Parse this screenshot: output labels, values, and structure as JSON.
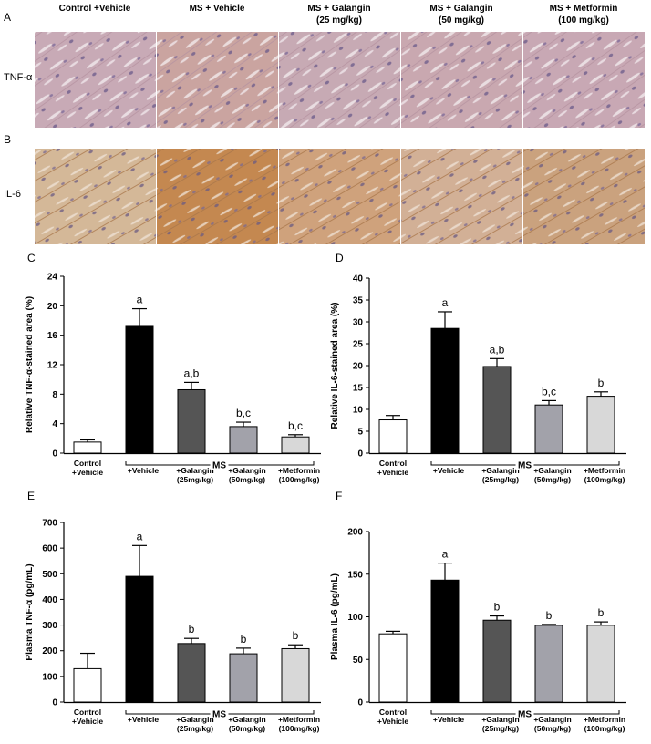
{
  "figure": {
    "micrographs": {
      "columns": [
        [
          "Control +Vehicle"
        ],
        [
          "MS + Vehicle"
        ],
        [
          "MS + Galangin",
          "(25 mg/kg)"
        ],
        [
          "MS + Galangin",
          "(50 mg/kg)"
        ],
        [
          "MS + Metformin",
          "(100 mg/kg)"
        ]
      ],
      "rows": [
        {
          "panel": "A",
          "label": "TNF-α"
        },
        {
          "panel": "B",
          "label": "IL-6"
        }
      ]
    },
    "panels": [
      "C",
      "D",
      "E",
      "F"
    ]
  },
  "chart_data": [
    {
      "type": "bar",
      "ylabel": "Relative TNF-α-stained area (%)",
      "categories": [
        [
          "Control",
          "+Vehicle"
        ],
        [
          "+Vehicle"
        ],
        [
          "+Galangin",
          "(25mg/kg)"
        ],
        [
          "+Galangin",
          "(50mg/kg)"
        ],
        [
          "+Metformin",
          "(100mg/kg)"
        ]
      ],
      "group_label": "MS",
      "values": [
        1.5,
        17.2,
        8.6,
        3.6,
        2.2
      ],
      "errors": [
        0.3,
        2.4,
        1.0,
        0.6,
        0.3
      ],
      "annotations": [
        null,
        "a",
        "a,b",
        "b,c",
        "b,c"
      ],
      "colors": [
        "#ffffff",
        "#000000",
        "#555555",
        "#a2a2aa",
        "#d8d8d8"
      ],
      "ylim": [
        0,
        24
      ],
      "yticks": [
        0,
        4,
        8,
        12,
        16,
        20,
        24
      ]
    },
    {
      "type": "bar",
      "ylabel": "Relative IL-6-stained area (%)",
      "categories": [
        [
          "Control",
          "+Vehicle"
        ],
        [
          "+Vehicle"
        ],
        [
          "+Galangin",
          "(25mg/kg)"
        ],
        [
          "+Galangin",
          "(50mg/kg)"
        ],
        [
          "+Metformin",
          "(100mg/kg)"
        ]
      ],
      "group_label": "MS",
      "values": [
        7.6,
        28.5,
        19.8,
        11.0,
        13.0
      ],
      "errors": [
        1.0,
        3.8,
        1.8,
        1.0,
        1.0
      ],
      "annotations": [
        null,
        "a",
        "a,b",
        "b,c",
        "b"
      ],
      "colors": [
        "#ffffff",
        "#000000",
        "#555555",
        "#a2a2aa",
        "#d8d8d8"
      ],
      "ylim": [
        0,
        40
      ],
      "yticks": [
        0,
        5,
        10,
        15,
        20,
        25,
        30,
        35,
        40
      ]
    },
    {
      "type": "bar",
      "ylabel": "Plasma TNF-α (pg/mL)",
      "categories": [
        [
          "Control",
          "+Vehicle"
        ],
        [
          "+Vehicle"
        ],
        [
          "+Galangin",
          "(25mg/kg)"
        ],
        [
          "+Galangin",
          "(50mg/kg)"
        ],
        [
          "+Metformin",
          "(100mg/kg)"
        ]
      ],
      "group_label": "MS",
      "values": [
        130,
        490,
        228,
        188,
        208
      ],
      "errors": [
        60,
        120,
        20,
        22,
        15
      ],
      "annotations": [
        null,
        "a",
        "b",
        "b",
        "b"
      ],
      "colors": [
        "#ffffff",
        "#000000",
        "#555555",
        "#a2a2aa",
        "#d8d8d8"
      ],
      "ylim": [
        0,
        700
      ],
      "yticks": [
        0,
        100,
        200,
        300,
        400,
        500,
        600,
        700
      ]
    },
    {
      "type": "bar",
      "ylabel": "Plasma IL-6 (pg/mL)",
      "categories": [
        [
          "Control",
          "+Vehicle"
        ],
        [
          "+Vehicle"
        ],
        [
          "+Galangin",
          "(25mg/kg)"
        ],
        [
          "+Galangin",
          "(50mg/kg)"
        ],
        [
          "+Metformin",
          "(100mg/kg)"
        ]
      ],
      "group_label": "MS",
      "values": [
        80,
        143,
        96,
        90,
        90
      ],
      "errors": [
        3,
        20,
        5,
        1,
        4
      ],
      "annotations": [
        null,
        "a",
        "b",
        "b",
        "b"
      ],
      "colors": [
        "#ffffff",
        "#000000",
        "#555555",
        "#a2a2aa",
        "#d8d8d8"
      ],
      "ylim": [
        0,
        200
      ],
      "yticks": [
        0,
        50,
        100,
        150,
        200
      ]
    }
  ]
}
